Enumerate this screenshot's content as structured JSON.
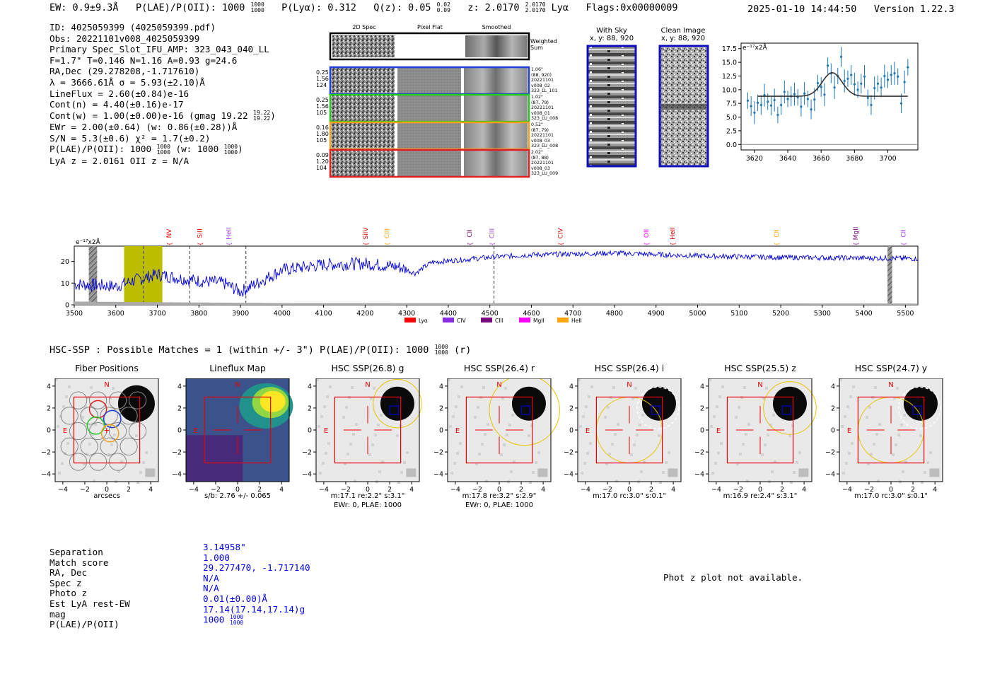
{
  "header": {
    "ew": "EW: 0.9±9.3Å",
    "plae": "P(LAE)/P(OII): 1000",
    "plae_hi": "1000",
    "plae_lo": "1000",
    "plya": "P(Lyα): 0.312",
    "qz": "Q(z): 0.05",
    "qz_hi": "0.02",
    "qz_lo": "0.09",
    "z": "z: 2.0170",
    "z_hi": "2.0170",
    "z_lo": "2.0170",
    "line": "Lyα",
    "flags": "Flags:0x00000009",
    "timestamp": "2025-01-10 14:44:50",
    "version": "Version 1.22.3"
  },
  "info": {
    "id": "ID: 4025059399 (4025059399.pdf)",
    "obs": "Obs: 20221101v008_4025059399",
    "primary": "Primary Spec_Slot_IFU_AMP: 323_043_040_LL",
    "fiber": "F=1.7\"  T=0.146  N=1.16  A=0.93  g=24.6",
    "radec": "RA,Dec (29.278208,-1.717610)",
    "lambda": "λ = 3666.61Å  σ = 5.93(±2.10)Å",
    "lineflux": "LineFlux = 2.60(±0.84)e-16",
    "contn": "Cont(n) = 4.40(±0.16)e-17",
    "contw": "Cont(w) = 1.00(±0.00)e-16 (gmag 19.22",
    "contw_hi": "19.22",
    "contw_lo": "19.22",
    "ewr": "EWr = 2.00(±0.64) (w: 0.86(±0.28))Å",
    "sn": "S/N = 5.3(±0.6)  χ² = 1.7(±0.2)",
    "plae": "P(LAE)/P(OII): 1000",
    "plae_w": "(w: 1000",
    "plae_frac": "1000",
    "lyaz": "LyA z = 2.0161   OII z = N/A"
  },
  "cutouts": {
    "col_2d": "2D Spec",
    "col_flat": "Pixel Flat",
    "col_smooth": "Smoothed",
    "weighted": "Weighted Sum",
    "rows": [
      {
        "l1": "0.25",
        "l2": "1.56",
        "l3": "124",
        "r1": "1.06\"",
        "r2": "(88, 920)",
        "r3": "20221101",
        "r4": "v008_02",
        "r5": "323_LL_101",
        "color": "#1f3fd6"
      },
      {
        "l1": "0.25",
        "l2": "1.56",
        "l3": "105",
        "r1": "1.02\"",
        "r2": "(87, 79)",
        "r3": "20221101",
        "r4": "v008_01",
        "r5": "323_LU_008",
        "color": "#22c722"
      },
      {
        "l1": "0.16",
        "l2": "1.80",
        "l3": "105",
        "r1": "0.52\"",
        "r2": "(87, 79)",
        "r3": "20221101",
        "r4": "v008_03",
        "r5": "323_LU_008",
        "color": "#f0a020"
      },
      {
        "l1": "0.09",
        "l2": "1.20",
        "l3": "104",
        "r1": "2.02\"",
        "r2": "(87, 88)",
        "r3": "20221101",
        "r4": "v008_03",
        "r5": "323_LU_009",
        "color": "#e02020"
      }
    ],
    "with_sky": "With Sky",
    "with_sky_xy": "x, y: 88, 920",
    "clean": "Clean Image",
    "clean_xy": "x, y: 88, 920"
  },
  "fit_chart": {
    "unit": "e⁻¹⁷x2Å"
  },
  "spec_chart": {
    "unit": "e⁻¹⁷x2Å",
    "legend": [
      {
        "name": "Lyα",
        "color": "#ff0000"
      },
      {
        "name": "CIV",
        "color": "#8a2be2"
      },
      {
        "name": "CIII",
        "color": "#7a0a7a"
      },
      {
        "name": "MgII",
        "color": "#ff00ff"
      },
      {
        "name": "HeII",
        "color": "#ffa500"
      }
    ],
    "lines": [
      {
        "name": "NV",
        "w": 3733,
        "color": "#e00000"
      },
      {
        "name": "SiII",
        "w": 3807,
        "color": "#e00000"
      },
      {
        "name": "HeII",
        "w": 3877,
        "color": "#a040e0"
      },
      {
        "name": "SiIV",
        "w": 4206,
        "color": "#e00000"
      },
      {
        "name": "CIII",
        "w": 4257,
        "color": "#ffa500"
      },
      {
        "name": "CII",
        "w": 4456,
        "color": "#7a0a7a"
      },
      {
        "name": "CIII",
        "w": 4510,
        "color": "#a040e0"
      },
      {
        "name": "CIV",
        "w": 4675,
        "color": "#e00000"
      },
      {
        "name": "OII",
        "w": 4882,
        "color": "#ff00ff"
      },
      {
        "name": "HeII",
        "w": 4945,
        "color": "#e00000"
      },
      {
        "name": "CII",
        "w": 5195,
        "color": "#ffa500"
      },
      {
        "name": "MgII",
        "w": 5385,
        "color": "#7a0a7a"
      },
      {
        "name": "CII",
        "w": 5500,
        "color": "#a040e0"
      }
    ]
  },
  "hsc": {
    "summary": "HSC-SSP : Possible Matches = 1 (within +/- 3\")  P(LAE)/P(OII): 1000",
    "summary_frac": "1000",
    "summary_r": "(r)",
    "panels": [
      {
        "title": "Fiber Positions",
        "cap1": "arcsecs",
        "cap2": ""
      },
      {
        "title": "Lineflux Map",
        "cap1": "s/b: 2.76 +/- 0.065",
        "cap2": ""
      },
      {
        "title": "HSC SSP(26.8) g",
        "cap1": "m:17.1  re:2.2\"  s:3.1\"",
        "cap2": "EWr: 0, PLAE: 1000"
      },
      {
        "title": "HSC SSP(26.4) r",
        "cap1": "m:17.8  re:3.2\"  s:2.9\"",
        "cap2": "EWr: 0, PLAE: 1000"
      },
      {
        "title": "HSC SSP(26.4) i",
        "cap1": "m:17.0 rc:3.0\"  s:0.1\"",
        "cap2": ""
      },
      {
        "title": "HSC SSP(25.5) z",
        "cap1": "m:16.9  re:2.4\"  s:3.1\"",
        "cap2": ""
      },
      {
        "title": "HSC SSP(24.7) y",
        "cap1": "m:17.0 rc:3.0\"  s:0.1\"",
        "cap2": ""
      }
    ],
    "north": "N",
    "east": "E"
  },
  "match": {
    "labels": [
      "Separation",
      "Match score",
      "RA, Dec",
      "Spec z",
      "Photo z",
      "Est LyA rest-EW",
      "mag",
      "P(LAE)/P(OII)"
    ],
    "values": [
      "3.14958\"",
      "1.000",
      "29.277470, -1.717140",
      "N/A",
      "N/A",
      "0.01(±0.00)Å",
      "17.14(17.14,17.14)g",
      "1000"
    ],
    "plae_frac": "1000",
    "photz_msg": "Phot z plot not available."
  },
  "chart_data": [
    {
      "type": "scatter",
      "title": "",
      "ylabel": "e⁻¹⁷x2Å",
      "xlim": [
        3612,
        3718
      ],
      "ylim": [
        -1,
        18.5
      ],
      "xticks": [
        3620,
        3640,
        3660,
        3680,
        3700
      ],
      "yticks": [
        0.0,
        2.5,
        5.0,
        7.5,
        10.0,
        12.5,
        15.0,
        17.5
      ],
      "x": [
        3616,
        3618,
        3620,
        3622,
        3624,
        3626,
        3628,
        3630,
        3632,
        3634,
        3636,
        3638,
        3640,
        3642,
        3644,
        3646,
        3648,
        3650,
        3652,
        3654,
        3656,
        3658,
        3660,
        3662,
        3664,
        3666,
        3668,
        3670,
        3672,
        3674,
        3676,
        3678,
        3680,
        3682,
        3684,
        3686,
        3688,
        3690,
        3692,
        3694,
        3696,
        3698,
        3700,
        3702,
        3704,
        3706,
        3708,
        3710,
        3712
      ],
      "y": [
        8.0,
        7.0,
        5.8,
        7.6,
        7.2,
        9.0,
        7.8,
        7.1,
        8.1,
        5.4,
        7.2,
        9.6,
        8.3,
        8.8,
        9.2,
        8.6,
        6.9,
        9.3,
        8.3,
        6.4,
        8.2,
        11.2,
        10.5,
        9.1,
        14.4,
        13.0,
        10.4,
        12.5,
        16.0,
        11.6,
        12.0,
        12.7,
        11.0,
        10.0,
        11.1,
        12.4,
        8.5,
        7.2,
        10.3,
        11.1,
        10.4,
        12.5,
        11.8,
        12.7,
        13.0,
        12.4,
        7.5,
        11.4,
        14.1
      ],
      "fit": {
        "continuum": 8.8,
        "peak": 4.3,
        "center": 3666.6,
        "sigma": 5.93
      }
    },
    {
      "type": "line",
      "xlabel": "",
      "ylabel": "e⁻¹⁷x2Å",
      "xlim": [
        3500,
        5530
      ],
      "ylim": [
        0,
        27
      ],
      "xticks": [
        3500,
        3600,
        3700,
        3800,
        3900,
        4000,
        4100,
        4200,
        4300,
        4400,
        4500,
        4600,
        4700,
        4800,
        4900,
        5000,
        5100,
        5200,
        5300,
        5400,
        5500
      ],
      "yticks": [
        0,
        10,
        20
      ],
      "highlight_band": [
        3620,
        3712
      ],
      "vlines_dash": [
        3666,
        3778,
        3913,
        4510
      ],
      "hatched_bands": [
        [
          3535,
          3555
        ],
        [
          5457,
          5468
        ]
      ],
      "series": [
        {
          "name": "flux",
          "color": "#0000dd",
          "smooth_knots": [
            [
              3500,
              9.5
            ],
            [
              3560,
              9
            ],
            [
              3600,
              8.5
            ],
            [
              3640,
              11
            ],
            [
              3700,
              14
            ],
            [
              3760,
              12
            ],
            [
              3800,
              11
            ],
            [
              3860,
              10
            ],
            [
              3900,
              6
            ],
            [
              3950,
              11
            ],
            [
              4000,
              16
            ],
            [
              4100,
              18.5
            ],
            [
              4200,
              19
            ],
            [
              4280,
              17.5
            ],
            [
              4320,
              14.5
            ],
            [
              4360,
              19.5
            ],
            [
              4450,
              21
            ],
            [
              4510,
              22
            ],
            [
              4600,
              23
            ],
            [
              4800,
              23.8
            ],
            [
              5000,
              22.5
            ],
            [
              5200,
              21.8
            ],
            [
              5400,
              21.5
            ],
            [
              5530,
              21.3
            ]
          ]
        },
        {
          "name": "noise",
          "color": "#aaaaaa",
          "smooth_knots": [
            [
              3500,
              1.5
            ],
            [
              3700,
              1.2
            ],
            [
              4000,
              0.8
            ],
            [
              5530,
              0.6
            ]
          ]
        }
      ]
    }
  ]
}
